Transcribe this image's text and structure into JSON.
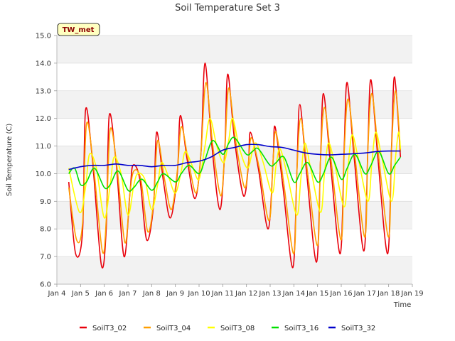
{
  "chart_data": {
    "type": "line",
    "title": "Soil Temperature Set 3",
    "xlabel": "Time",
    "ylabel": "Soil Temperature (C)",
    "badge": "TW_met",
    "xlim": [
      "2024-01-04",
      "2024-01-19"
    ],
    "ylim": [
      6.0,
      15.0
    ],
    "x_ticks": [
      "Jan 4",
      "Jan 5",
      "Jan 6",
      "Jan 7",
      "Jan 8",
      "Jan 9",
      "Jan 10",
      "Jan 11",
      "Jan 12",
      "Jan 13",
      "Jan 14",
      "Jan 15",
      "Jan 16",
      "Jan 17",
      "Jan 18",
      "Jan 19"
    ],
    "y_ticks": [
      "6.0",
      "7.0",
      "8.0",
      "9.0",
      "10.0",
      "11.0",
      "12.0",
      "13.0",
      "14.0",
      "15.0"
    ],
    "grid": true,
    "legend_position": "bottom",
    "series": [
      {
        "name": "SoilT3_02",
        "color": "#e8000b",
        "points": [
          [
            "2024-01-04T12:00",
            9.7
          ],
          [
            "2024-01-04T19:00",
            7.1
          ],
          [
            "2024-01-05T02:00",
            7.9
          ],
          [
            "2024-01-05T05:00",
            12.3
          ],
          [
            "2024-01-05T12:00",
            10.5
          ],
          [
            "2024-01-05T21:00",
            6.7
          ],
          [
            "2024-01-06T02:00",
            8.0
          ],
          [
            "2024-01-06T05:00",
            12.1
          ],
          [
            "2024-01-06T12:00",
            10.4
          ],
          [
            "2024-01-06T20:00",
            7.0
          ],
          [
            "2024-01-07T02:00",
            9.3
          ],
          [
            "2024-01-07T05:00",
            10.3
          ],
          [
            "2024-01-07T12:00",
            9.8
          ],
          [
            "2024-01-07T19:00",
            7.6
          ],
          [
            "2024-01-08T02:00",
            8.9
          ],
          [
            "2024-01-08T05:00",
            11.5
          ],
          [
            "2024-01-08T12:00",
            9.7
          ],
          [
            "2024-01-08T19:00",
            8.4
          ],
          [
            "2024-01-09T02:00",
            10.0
          ],
          [
            "2024-01-09T05:00",
            12.1
          ],
          [
            "2024-01-09T12:00",
            10.5
          ],
          [
            "2024-01-09T20:00",
            9.1
          ],
          [
            "2024-01-10T02:00",
            10.8
          ],
          [
            "2024-01-10T06:00",
            14.0
          ],
          [
            "2024-01-10T13:00",
            11.0
          ],
          [
            "2024-01-10T21:00",
            8.7
          ],
          [
            "2024-01-11T02:00",
            10.8
          ],
          [
            "2024-01-11T05:00",
            13.6
          ],
          [
            "2024-01-11T12:00",
            11.2
          ],
          [
            "2024-01-11T21:00",
            9.2
          ],
          [
            "2024-01-12T02:00",
            10.3
          ],
          [
            "2024-01-12T04:00",
            11.5
          ],
          [
            "2024-01-12T12:00",
            10.2
          ],
          [
            "2024-01-12T22:00",
            8.0
          ],
          [
            "2024-01-13T03:00",
            10.5
          ],
          [
            "2024-01-13T05:00",
            11.7
          ],
          [
            "2024-01-13T13:00",
            9.5
          ],
          [
            "2024-01-13T23:00",
            6.6
          ],
          [
            "2024-01-14T03:00",
            10.0
          ],
          [
            "2024-01-14T06:00",
            12.5
          ],
          [
            "2024-01-14T13:00",
            10.0
          ],
          [
            "2024-01-14T23:00",
            6.8
          ],
          [
            "2024-01-15T03:00",
            10.5
          ],
          [
            "2024-01-15T06:00",
            12.9
          ],
          [
            "2024-01-15T13:00",
            10.4
          ],
          [
            "2024-01-15T23:00",
            7.1
          ],
          [
            "2024-01-16T03:00",
            11.0
          ],
          [
            "2024-01-16T06:00",
            13.3
          ],
          [
            "2024-01-16T13:00",
            10.6
          ],
          [
            "2024-01-16T23:00",
            7.2
          ],
          [
            "2024-01-17T03:00",
            11.0
          ],
          [
            "2024-01-17T06:00",
            13.4
          ],
          [
            "2024-01-17T13:00",
            10.6
          ],
          [
            "2024-01-17T23:00",
            7.1
          ],
          [
            "2024-01-18T03:00",
            11.0
          ],
          [
            "2024-01-18T06:00",
            13.5
          ],
          [
            "2024-01-18T12:00",
            10.6
          ]
        ]
      },
      {
        "name": "SoilT3_04",
        "color": "#ff9f00",
        "points": [
          [
            "2024-01-04T12:00",
            9.5
          ],
          [
            "2024-01-04T20:00",
            7.6
          ],
          [
            "2024-01-05T02:00",
            8.2
          ],
          [
            "2024-01-05T06:00",
            11.8
          ],
          [
            "2024-01-05T13:00",
            10.3
          ],
          [
            "2024-01-05T22:00",
            7.2
          ],
          [
            "2024-01-06T02:00",
            8.3
          ],
          [
            "2024-01-06T06:00",
            11.6
          ],
          [
            "2024-01-06T13:00",
            10.2
          ],
          [
            "2024-01-06T21:00",
            7.5
          ],
          [
            "2024-01-07T02:00",
            9.3
          ],
          [
            "2024-01-07T06:00",
            10.1
          ],
          [
            "2024-01-07T13:00",
            9.8
          ],
          [
            "2024-01-07T20:00",
            7.9
          ],
          [
            "2024-01-08T02:00",
            9.0
          ],
          [
            "2024-01-08T06:00",
            11.2
          ],
          [
            "2024-01-08T13:00",
            9.8
          ],
          [
            "2024-01-08T20:00",
            8.7
          ],
          [
            "2024-01-09T02:00",
            10.1
          ],
          [
            "2024-01-09T06:00",
            11.7
          ],
          [
            "2024-01-09T13:00",
            10.5
          ],
          [
            "2024-01-09T21:00",
            9.3
          ],
          [
            "2024-01-10T02:00",
            10.8
          ],
          [
            "2024-01-10T07:00",
            13.3
          ],
          [
            "2024-01-10T14:00",
            11.0
          ],
          [
            "2024-01-10T22:00",
            9.2
          ],
          [
            "2024-01-11T02:00",
            10.8
          ],
          [
            "2024-01-11T06:00",
            13.1
          ],
          [
            "2024-01-11T13:00",
            11.2
          ],
          [
            "2024-01-11T22:00",
            9.5
          ],
          [
            "2024-01-12T02:00",
            10.4
          ],
          [
            "2024-01-12T05:00",
            11.3
          ],
          [
            "2024-01-12T13:00",
            10.2
          ],
          [
            "2024-01-12T23:00",
            8.3
          ],
          [
            "2024-01-13T03:00",
            10.5
          ],
          [
            "2024-01-13T06:00",
            11.5
          ],
          [
            "2024-01-13T14:00",
            9.6
          ],
          [
            "2024-01-14T00:00",
            7.1
          ],
          [
            "2024-01-14T03:00",
            10.0
          ],
          [
            "2024-01-14T07:00",
            12.0
          ],
          [
            "2024-01-14T14:00",
            10.0
          ],
          [
            "2024-01-15T00:00",
            7.4
          ],
          [
            "2024-01-15T03:00",
            10.5
          ],
          [
            "2024-01-15T07:00",
            12.4
          ],
          [
            "2024-01-15T14:00",
            10.4
          ],
          [
            "2024-01-16T00:00",
            7.6
          ],
          [
            "2024-01-16T03:00",
            10.8
          ],
          [
            "2024-01-16T07:00",
            12.7
          ],
          [
            "2024-01-16T14:00",
            10.6
          ],
          [
            "2024-01-17T00:00",
            7.7
          ],
          [
            "2024-01-17T03:00",
            10.9
          ],
          [
            "2024-01-17T07:00",
            12.9
          ],
          [
            "2024-01-17T14:00",
            10.6
          ],
          [
            "2024-01-18T00:00",
            7.7
          ],
          [
            "2024-01-18T03:00",
            10.9
          ],
          [
            "2024-01-18T07:00",
            13.0
          ],
          [
            "2024-01-18T12:00",
            10.8
          ]
        ]
      },
      {
        "name": "SoilT3_08",
        "color": "#ffff00",
        "points": [
          [
            "2024-01-04T12:00",
            10.2
          ],
          [
            "2024-01-04T23:00",
            8.6
          ],
          [
            "2024-01-05T05:00",
            9.5
          ],
          [
            "2024-01-05T09:00",
            10.7
          ],
          [
            "2024-01-05T16:00",
            10.2
          ],
          [
            "2024-01-06T00:00",
            8.4
          ],
          [
            "2024-01-06T06:00",
            9.6
          ],
          [
            "2024-01-06T10:00",
            10.6
          ],
          [
            "2024-01-06T17:00",
            10.0
          ],
          [
            "2024-01-07T00:00",
            8.5
          ],
          [
            "2024-01-07T06:00",
            9.6
          ],
          [
            "2024-01-07T10:00",
            10.0
          ],
          [
            "2024-01-07T17:00",
            9.8
          ],
          [
            "2024-01-08T00:00",
            8.7
          ],
          [
            "2024-01-08T06:00",
            9.6
          ],
          [
            "2024-01-08T10:00",
            10.4
          ],
          [
            "2024-01-08T17:00",
            9.9
          ],
          [
            "2024-01-09T00:00",
            9.3
          ],
          [
            "2024-01-09T06:00",
            10.1
          ],
          [
            "2024-01-09T10:00",
            10.8
          ],
          [
            "2024-01-09T17:00",
            10.3
          ],
          [
            "2024-01-10T00:00",
            9.8
          ],
          [
            "2024-01-10T06:00",
            11.0
          ],
          [
            "2024-01-10T11:00",
            12.0
          ],
          [
            "2024-01-10T18:00",
            11.0
          ],
          [
            "2024-01-11T01:00",
            10.4
          ],
          [
            "2024-01-11T06:00",
            11.2
          ],
          [
            "2024-01-11T10:00",
            12.0
          ],
          [
            "2024-01-11T17:00",
            10.9
          ],
          [
            "2024-01-12T01:00",
            10.2
          ],
          [
            "2024-01-12T06:00",
            10.8
          ],
          [
            "2024-01-12T10:00",
            11.1
          ],
          [
            "2024-01-12T17:00",
            10.4
          ],
          [
            "2024-01-13T02:00",
            9.3
          ],
          [
            "2024-01-13T06:00",
            10.3
          ],
          [
            "2024-01-13T10:00",
            10.9
          ],
          [
            "2024-01-13T17:00",
            10.0
          ],
          [
            "2024-01-14T03:00",
            8.5
          ],
          [
            "2024-01-14T07:00",
            9.8
          ],
          [
            "2024-01-14T11:00",
            11.1
          ],
          [
            "2024-01-14T17:00",
            10.2
          ],
          [
            "2024-01-15T03:00",
            8.6
          ],
          [
            "2024-01-15T07:00",
            10.0
          ],
          [
            "2024-01-15T11:00",
            11.1
          ],
          [
            "2024-01-15T17:00",
            10.4
          ],
          [
            "2024-01-16T03:00",
            8.8
          ],
          [
            "2024-01-16T07:00",
            10.3
          ],
          [
            "2024-01-16T11:00",
            11.4
          ],
          [
            "2024-01-16T17:00",
            10.6
          ],
          [
            "2024-01-17T03:00",
            9.0
          ],
          [
            "2024-01-17T07:00",
            10.4
          ],
          [
            "2024-01-17T11:00",
            11.5
          ],
          [
            "2024-01-17T17:00",
            10.6
          ],
          [
            "2024-01-18T03:00",
            9.0
          ],
          [
            "2024-01-18T07:00",
            10.6
          ],
          [
            "2024-01-18T10:00",
            11.5
          ],
          [
            "2024-01-18T12:00",
            10.9
          ]
        ]
      },
      {
        "name": "SoilT3_16",
        "color": "#00e000",
        "points": [
          [
            "2024-01-04T12:00",
            10.0
          ],
          [
            "2024-01-04T18:00",
            10.2
          ],
          [
            "2024-01-05T00:00",
            9.6
          ],
          [
            "2024-01-05T06:00",
            9.7
          ],
          [
            "2024-01-05T14:00",
            10.2
          ],
          [
            "2024-01-06T00:00",
            9.5
          ],
          [
            "2024-01-06T06:00",
            9.6
          ],
          [
            "2024-01-06T14:00",
            10.1
          ],
          [
            "2024-01-07T00:00",
            9.4
          ],
          [
            "2024-01-07T06:00",
            9.5
          ],
          [
            "2024-01-07T14:00",
            9.8
          ],
          [
            "2024-01-08T00:00",
            9.4
          ],
          [
            "2024-01-08T06:00",
            9.7
          ],
          [
            "2024-01-08T12:00",
            10.0
          ],
          [
            "2024-01-09T00:00",
            9.7
          ],
          [
            "2024-01-09T06:00",
            10.0
          ],
          [
            "2024-01-09T14:00",
            10.3
          ],
          [
            "2024-01-10T00:00",
            10.0
          ],
          [
            "2024-01-10T06:00",
            10.5
          ],
          [
            "2024-01-10T14:00",
            11.2
          ],
          [
            "2024-01-11T00:00",
            10.7
          ],
          [
            "2024-01-11T06:00",
            11.1
          ],
          [
            "2024-01-11T12:00",
            11.3
          ],
          [
            "2024-01-12T00:00",
            10.7
          ],
          [
            "2024-01-12T06:00",
            10.8
          ],
          [
            "2024-01-12T12:00",
            10.9
          ],
          [
            "2024-01-13T00:00",
            10.3
          ],
          [
            "2024-01-13T06:00",
            10.4
          ],
          [
            "2024-01-13T14:00",
            10.6
          ],
          [
            "2024-01-14T00:00",
            9.7
          ],
          [
            "2024-01-14T06:00",
            10.0
          ],
          [
            "2024-01-14T14:00",
            10.4
          ],
          [
            "2024-01-15T00:00",
            9.7
          ],
          [
            "2024-01-15T06:00",
            10.0
          ],
          [
            "2024-01-15T14:00",
            10.6
          ],
          [
            "2024-01-16T00:00",
            9.8
          ],
          [
            "2024-01-16T06:00",
            10.2
          ],
          [
            "2024-01-16T14:00",
            10.7
          ],
          [
            "2024-01-17T00:00",
            10.0
          ],
          [
            "2024-01-17T06:00",
            10.3
          ],
          [
            "2024-01-17T14:00",
            10.8
          ],
          [
            "2024-01-18T00:00",
            10.0
          ],
          [
            "2024-01-18T06:00",
            10.3
          ],
          [
            "2024-01-18T12:00",
            10.6
          ]
        ]
      },
      {
        "name": "SoilT3_32",
        "color": "#0000cc",
        "points": [
          [
            "2024-01-04T12:00",
            10.15
          ],
          [
            "2024-01-05T00:00",
            10.25
          ],
          [
            "2024-01-05T12:00",
            10.3
          ],
          [
            "2024-01-06T00:00",
            10.3
          ],
          [
            "2024-01-06T12:00",
            10.35
          ],
          [
            "2024-01-07T00:00",
            10.3
          ],
          [
            "2024-01-07T12:00",
            10.3
          ],
          [
            "2024-01-08T00:00",
            10.25
          ],
          [
            "2024-01-08T12:00",
            10.3
          ],
          [
            "2024-01-09T00:00",
            10.3
          ],
          [
            "2024-01-09T12:00",
            10.4
          ],
          [
            "2024-01-10T00:00",
            10.45
          ],
          [
            "2024-01-10T12:00",
            10.6
          ],
          [
            "2024-01-11T00:00",
            10.85
          ],
          [
            "2024-01-11T12:00",
            10.95
          ],
          [
            "2024-01-12T00:00",
            11.05
          ],
          [
            "2024-01-12T12:00",
            11.05
          ],
          [
            "2024-01-13T00:00",
            10.98
          ],
          [
            "2024-01-13T12:00",
            10.95
          ],
          [
            "2024-01-14T00:00",
            10.85
          ],
          [
            "2024-01-14T12:00",
            10.75
          ],
          [
            "2024-01-15T00:00",
            10.7
          ],
          [
            "2024-01-15T12:00",
            10.68
          ],
          [
            "2024-01-16T00:00",
            10.7
          ],
          [
            "2024-01-16T12:00",
            10.72
          ],
          [
            "2024-01-17T00:00",
            10.75
          ],
          [
            "2024-01-17T12:00",
            10.8
          ],
          [
            "2024-01-18T00:00",
            10.82
          ],
          [
            "2024-01-18T12:00",
            10.82
          ]
        ]
      }
    ]
  }
}
